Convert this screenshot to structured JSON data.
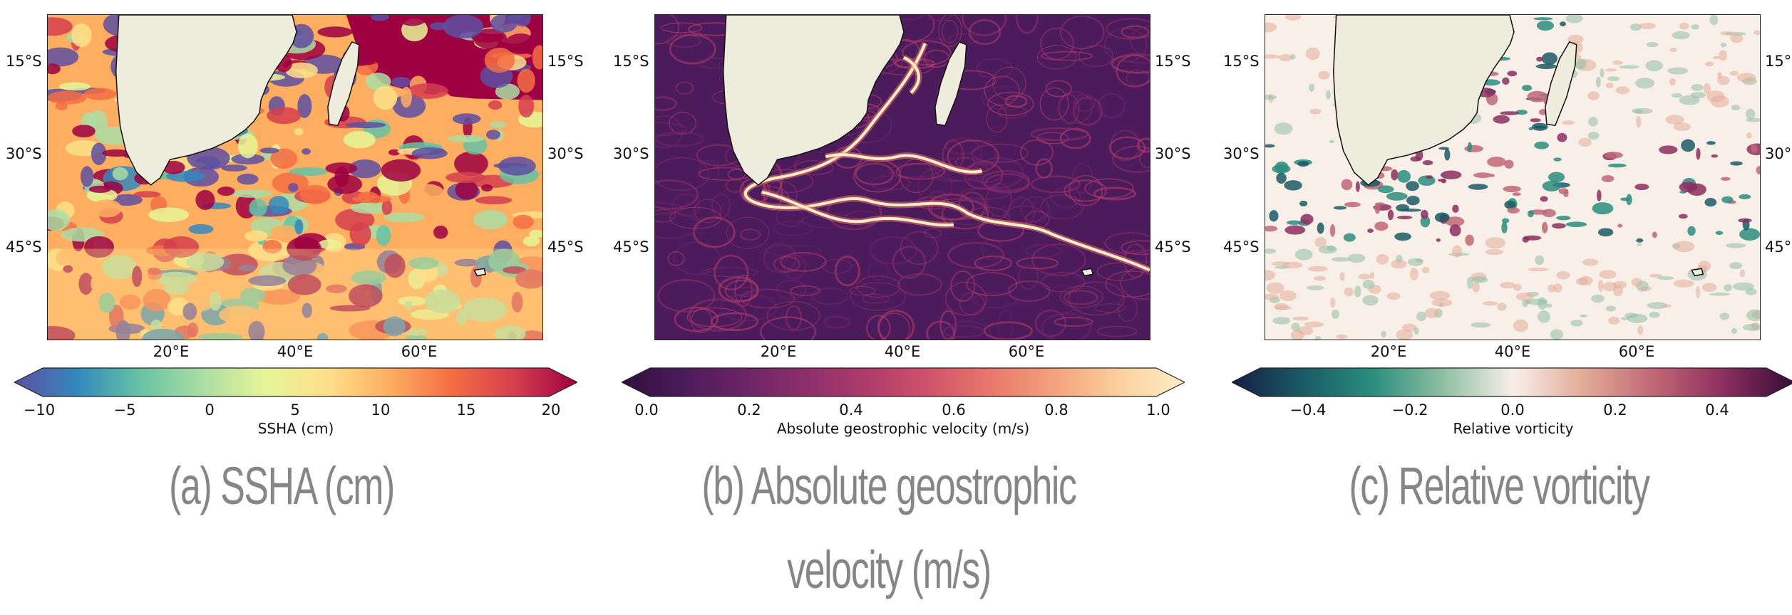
{
  "figure": {
    "lat_ticks": [
      "15°S",
      "30°S",
      "45°S"
    ],
    "lon_ticks": [
      "20°E",
      "40°E",
      "60°E"
    ],
    "panels": [
      {
        "id": "a",
        "caption": "(a) SSHA (cm)",
        "colorbar_label": "SSHA (cm)",
        "colorbar_ticks": [
          "−10",
          "−5",
          "0",
          "5",
          "10",
          "15",
          "20"
        ],
        "colormap": "Spectral_r",
        "colors": [
          "#5e4fa2",
          "#3288bd",
          "#66c2a5",
          "#abdda4",
          "#e6f598",
          "#fee08b",
          "#fdae61",
          "#f46d43",
          "#d53e4f",
          "#9e0142"
        ],
        "range": [
          -10,
          20
        ],
        "extend": "both"
      },
      {
        "id": "b",
        "caption_line1": "(b) Absolute geostrophic",
        "caption_line2": "velocity (m/s)",
        "colorbar_label": "Absolute geostrophic velocity (m/s)",
        "colorbar_ticks": [
          "0.0",
          "0.2",
          "0.4",
          "0.6",
          "0.8",
          "1.0"
        ],
        "colormap": "matter",
        "colors": [
          "#2f0f3d",
          "#4c1b5b",
          "#6d2466",
          "#8f2f6b",
          "#b13c6b",
          "#d2566a",
          "#e97c6c",
          "#f5a57e",
          "#fcd29f",
          "#fdeec5"
        ],
        "range": [
          0.0,
          1.0
        ],
        "extend": "both"
      },
      {
        "id": "c",
        "caption": "(c) Relative vorticity",
        "colorbar_label": "Relative vorticity",
        "colorbar_ticks": [
          "−0.4",
          "−0.2",
          "0.0",
          "0.2",
          "0.4"
        ],
        "colormap": "curl",
        "colors": [
          "#151d44",
          "#1b5a65",
          "#2a8d7e",
          "#8fbfa2",
          "#f8efe8",
          "#e2ab97",
          "#c06775",
          "#8c2e5f",
          "#340d35"
        ],
        "range": [
          -0.5,
          0.5
        ],
        "extend": "both"
      }
    ],
    "land_color": "#eeecdc",
    "coast_color": "#111111"
  }
}
